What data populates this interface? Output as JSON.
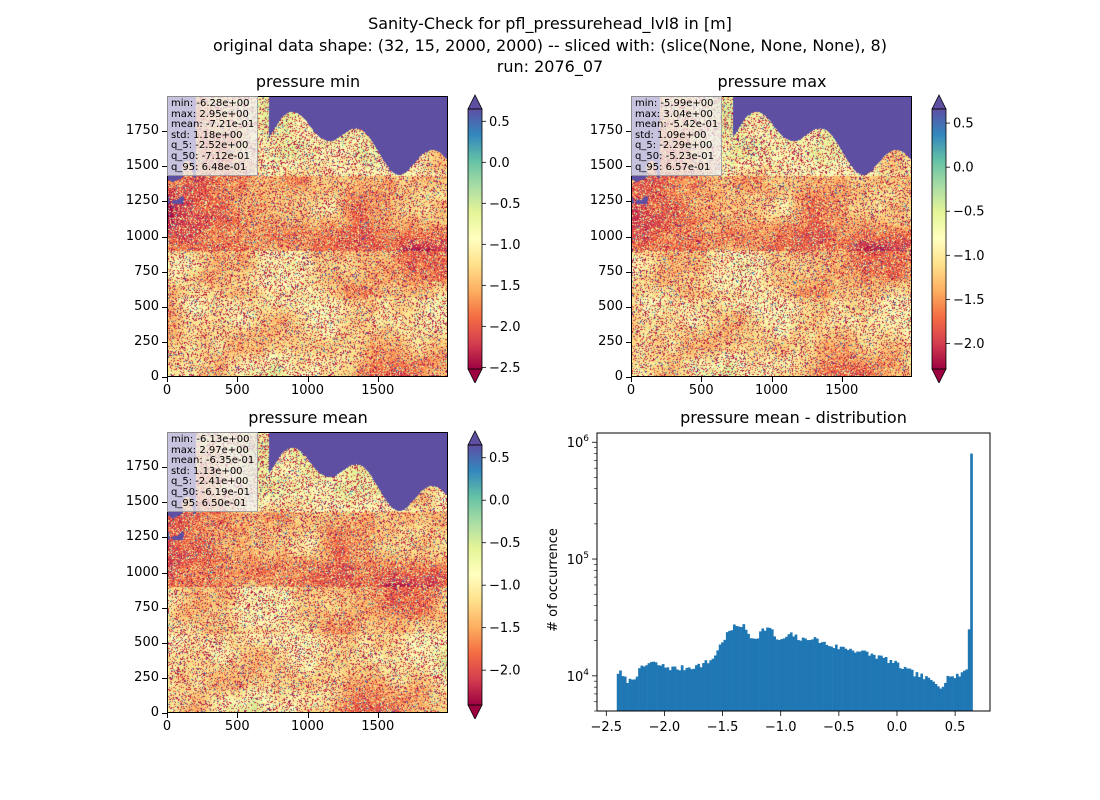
{
  "figure": {
    "title_lines": [
      "Sanity-Check for pfl_pressurehead_lvl8 in [m]",
      "original data shape: (32, 15, 2000, 2000) -- sliced with: (slice(None, None, None), 8)",
      "run: 2076_07"
    ]
  },
  "colormap": "Spectral",
  "chart_data": [
    {
      "type": "heatmap",
      "title": "pressure min",
      "x_ticks": [
        "0",
        "500",
        "1000",
        "1500"
      ],
      "y_ticks": [
        "0",
        "250",
        "500",
        "750",
        "1000",
        "1250",
        "1500",
        "1750"
      ],
      "xlim": [
        0,
        2000
      ],
      "ylim": [
        0,
        2000
      ],
      "colorbar": {
        "ticks": [
          "0.5",
          "0.0",
          "−0.5",
          "−1.0",
          "−1.5",
          "−2.0",
          "−2.5"
        ],
        "range": [
          -2.52,
          0.65
        ],
        "extend": "both"
      },
      "stats": [
        "min: -6.28e+00",
        "max: 2.95e+00",
        "mean: -7.21e-01",
        "std: 1.18e+00",
        "q_5: -2.52e+00",
        "q_50: -7.12e-01",
        "q_95: 6.48e-01"
      ]
    },
    {
      "type": "heatmap",
      "title": "pressure max",
      "x_ticks": [
        "0",
        "500",
        "1000",
        "1500"
      ],
      "y_ticks": [
        "0",
        "250",
        "500",
        "750",
        "1000",
        "1250",
        "1500",
        "1750"
      ],
      "xlim": [
        0,
        2000
      ],
      "ylim": [
        0,
        2000
      ],
      "colorbar": {
        "ticks": [
          "0.5",
          "0.0",
          "−0.5",
          "−1.0",
          "−1.5",
          "−2.0"
        ],
        "range": [
          -2.29,
          0.66
        ],
        "extend": "both"
      },
      "stats": [
        "min: -5.99e+00",
        "max: 3.04e+00",
        "mean: -5.42e-01",
        "std: 1.09e+00",
        "q_5: -2.29e+00",
        "q_50: -5.23e-01",
        "q_95: 6.57e-01"
      ]
    },
    {
      "type": "heatmap",
      "title": "pressure mean",
      "x_ticks": [
        "0",
        "500",
        "1000",
        "1500"
      ],
      "y_ticks": [
        "0",
        "250",
        "500",
        "750",
        "1000",
        "1250",
        "1500",
        "1750"
      ],
      "xlim": [
        0,
        2000
      ],
      "ylim": [
        0,
        2000
      ],
      "colorbar": {
        "ticks": [
          "0.5",
          "0.0",
          "−0.5",
          "−1.0",
          "−1.5",
          "−2.0"
        ],
        "range": [
          -2.41,
          0.65
        ],
        "extend": "both"
      },
      "stats": [
        "min: -6.13e+00",
        "max: 2.97e+00",
        "mean: -6.35e-01",
        "std: 1.13e+00",
        "q_5: -2.41e+00",
        "q_50: -6.19e-01",
        "q_95: 6.50e-01"
      ]
    },
    {
      "type": "bar",
      "title": "pressure mean - distribution",
      "ylabel": "# of occurrence",
      "yscale": "log",
      "ylim": [
        5000,
        1200000
      ],
      "xlim": [
        -2.58,
        0.8
      ],
      "x_ticks": [
        "−2.5",
        "−2.0",
        "−1.5",
        "−1.0",
        "−0.5",
        "0.0",
        "0.5"
      ],
      "y_ticks": [
        "10^4",
        "10^5",
        "10^6"
      ],
      "bar_color": "#1f77b4",
      "bin_range": [
        -2.41,
        0.65
      ],
      "bin_count": 150,
      "histogram": [
        [
          -2.41,
          10500
        ],
        [
          -2.39,
          11000
        ],
        [
          -2.35,
          9500
        ],
        [
          -2.3,
          9000
        ],
        [
          -2.25,
          10000
        ],
        [
          -2.2,
          11500
        ],
        [
          -2.15,
          12500
        ],
        [
          -2.12,
          13000
        ],
        [
          -2.08,
          12700
        ],
        [
          -2.0,
          12000
        ],
        [
          -1.9,
          11500
        ],
        [
          -1.8,
          11800
        ],
        [
          -1.7,
          12300
        ],
        [
          -1.6,
          13500
        ],
        [
          -1.55,
          16000
        ],
        [
          -1.5,
          20000
        ],
        [
          -1.45,
          23500
        ],
        [
          -1.4,
          26000
        ],
        [
          -1.36,
          27500
        ],
        [
          -1.32,
          26500
        ],
        [
          -1.28,
          23000
        ],
        [
          -1.24,
          21000
        ],
        [
          -1.2,
          22000
        ],
        [
          -1.16,
          24500
        ],
        [
          -1.12,
          26000
        ],
        [
          -1.08,
          24500
        ],
        [
          -1.04,
          21000
        ],
        [
          -1.0,
          19500
        ],
        [
          -0.96,
          21500
        ],
        [
          -0.9,
          22500
        ],
        [
          -0.85,
          21000
        ],
        [
          -0.8,
          20000
        ],
        [
          -0.75,
          21500
        ],
        [
          -0.7,
          20500
        ],
        [
          -0.6,
          18500
        ],
        [
          -0.5,
          17500
        ],
        [
          -0.4,
          17000
        ],
        [
          -0.3,
          16000
        ],
        [
          -0.2,
          15000
        ],
        [
          -0.1,
          14000
        ],
        [
          0.0,
          12500
        ],
        [
          0.1,
          11000
        ],
        [
          0.2,
          10000
        ],
        [
          0.3,
          9000
        ],
        [
          0.38,
          8200
        ],
        [
          0.43,
          9500
        ],
        [
          0.46,
          10500
        ],
        [
          0.5,
          9500
        ],
        [
          0.55,
          10500
        ],
        [
          0.6,
          11500
        ],
        [
          0.62,
          14000
        ],
        [
          0.635,
          25000
        ],
        [
          0.645,
          800000
        ],
        [
          0.65,
          800000
        ]
      ]
    }
  ]
}
